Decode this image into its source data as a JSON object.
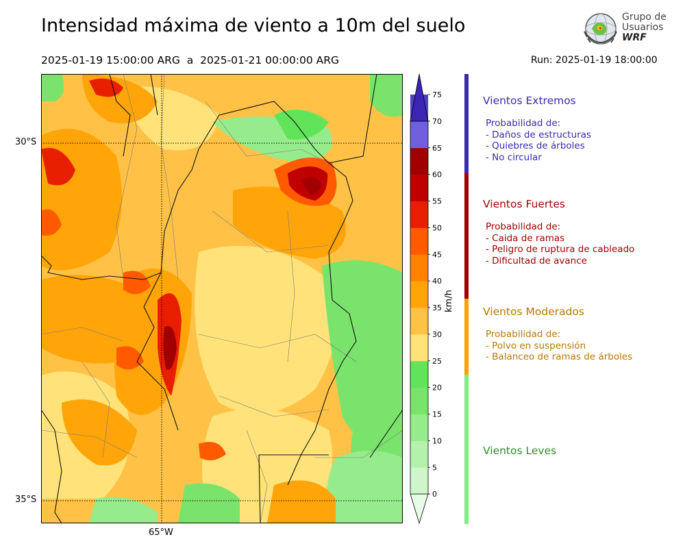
{
  "header": {
    "title": "Intensidad máxima de viento a 10m del suelo",
    "date_range": "2025-01-19 15:00:00 ARG  a  2025-01-21 00:00:00 ARG",
    "run": "Run: 2025-01-19 18:00:00"
  },
  "logo": {
    "line1": "Grupo de",
    "line2": "Usuarios",
    "line3": "WRF"
  },
  "map": {
    "lat_labels": [
      "30°S",
      "35°S"
    ],
    "lon_labels": [
      "65°W"
    ]
  },
  "colorbar": {
    "unit": "km/h",
    "ticks": [
      "0",
      "5",
      "10",
      "15",
      "20",
      "25",
      "30",
      "35",
      "40",
      "45",
      "50",
      "55",
      "60",
      "65",
      "70",
      "75",
      "80"
    ],
    "colors": [
      "#e8fbe6",
      "#cff6cb",
      "#b3f1ad",
      "#96ec8c",
      "#7ae36c",
      "#62e45a",
      "#ffe37a",
      "#ffc247",
      "#ffa50a",
      "#ff8200",
      "#ff5a00",
      "#e81e00",
      "#c00000",
      "#a00000",
      "#7060dc",
      "#5040c8",
      "#3c24b4"
    ]
  },
  "categories": [
    {
      "name": "Vientos Extremos",
      "color": "#3a2ab0",
      "lines": [
        "Probabilidad de:",
        "- Daños de estructuras",
        "- Quiebres de árboles",
        "- No circular"
      ]
    },
    {
      "name": "Vientos Fuertes",
      "color": "#a00000",
      "lines": [
        "Probabilidad de:",
        "- Caida de ramas",
        "- Peligro de ruptura de cableado",
        "- Dificultad de avance"
      ]
    },
    {
      "name": "Vientos Moderados",
      "color": "#b87700",
      "lines": [
        "Probabilidad de:",
        "- Polvo en suspensión",
        "- Balanceo de ramas de árboles"
      ]
    },
    {
      "name": "Vientos Leves",
      "color": "#2e8b2e",
      "lines": []
    }
  ],
  "category_bar_colors": [
    "#3a2ab0",
    "#a00000",
    "#ffa000",
    "#7ef07a"
  ]
}
